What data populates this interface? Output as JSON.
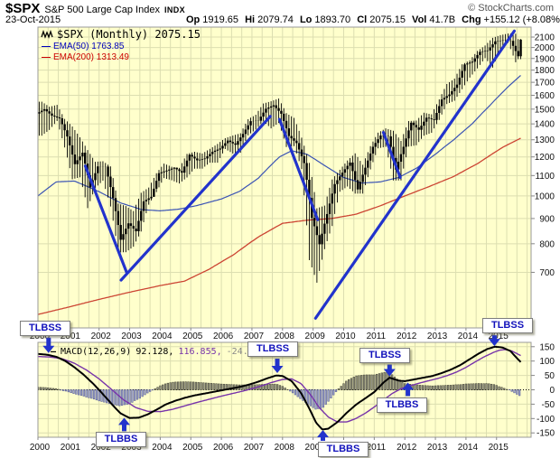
{
  "header": {
    "symbol": "$SPX",
    "title": "S&P 500 Large Cap Index",
    "exchange": "INDX",
    "copyright": "© StockCharts.com",
    "date": "23-Oct-2015",
    "quote": {
      "op_l": "Op",
      "op": "1919.65",
      "hi_l": "Hi",
      "hi": "2079.74",
      "lo_l": "Lo",
      "lo": "1893.70",
      "cl_l": "Cl",
      "cl": "2075.15",
      "vol_l": "Vol",
      "vol": "41.7B",
      "chg_l": "Chg",
      "chg": "+155.12 (+8.08%)",
      "dir": "▲"
    }
  },
  "legend": {
    "price": "$SPX (Monthly) 2075.15",
    "ema50": "EMA(50) 1763.85",
    "ema200": "EMA(200) 1313.49",
    "dash": "—",
    "macd_name": "MACD(12,26,9)",
    "macd_v1": "92.128,",
    "macd_v2": "116.855,",
    "macd_v3": "-24.727"
  },
  "colors": {
    "bg": "#ffffcc",
    "grid": "#dcdeb0",
    "frame": "#999999",
    "candle": "#000000",
    "ema50": "#3a53b4",
    "ema200": "#cc4433",
    "trend": "#2233cc",
    "macd": "#000000",
    "signal": "#7733aa",
    "hist_pos": "#8f8f80",
    "hist_pos_stroke": "#50503f",
    "hist_neg": "#a0a6cc",
    "hist_neg_stroke": "#5f6498",
    "anno_text": "#1111bb",
    "arrow": "#2233cc",
    "axis_text": "#111111"
  },
  "chart_data": [
    {
      "type": "candlestick",
      "title": "$SPX (Monthly)",
      "y_scale": "log",
      "x_range": [
        2000,
        2016.13
      ],
      "x_years": [
        2000,
        2001,
        2002,
        2003,
        2004,
        2005,
        2006,
        2007,
        2008,
        2009,
        2010,
        2011,
        2012,
        2013,
        2014,
        2015
      ],
      "ylim": [
        540,
        2200
      ],
      "yticks": [
        2100,
        2000,
        1900,
        1800,
        1700,
        1600,
        1500,
        1400,
        1300,
        1200,
        1100,
        1000,
        900,
        800,
        700
      ],
      "first_close": 1469,
      "quarters": {
        "t": [
          2000.25,
          2000.5,
          2000.75,
          2001,
          2001.25,
          2001.5,
          2001.75,
          2002,
          2002.25,
          2002.5,
          2002.75,
          2003,
          2003.25,
          2003.5,
          2003.75,
          2004,
          2004.25,
          2004.5,
          2004.75,
          2005,
          2005.25,
          2005.5,
          2005.75,
          2006,
          2006.25,
          2006.5,
          2006.75,
          2007,
          2007.25,
          2007.5,
          2007.75,
          2008,
          2008.25,
          2008.5,
          2008.75,
          2009,
          2009.25,
          2009.5,
          2009.75,
          2010,
          2010.25,
          2010.5,
          2010.75,
          2011,
          2011.25,
          2011.5,
          2011.75,
          2012,
          2012.25,
          2012.5,
          2012.75,
          2013,
          2013.25,
          2013.5,
          2013.75,
          2014,
          2014.25,
          2014.5,
          2014.75,
          2015,
          2015.25,
          2015.5,
          2015.75,
          2015.83
        ],
        "close": [
          1499,
          1455,
          1437,
          1320,
          1160,
          1224,
          1041,
          1148,
          1147,
          990,
          815,
          880,
          848,
          975,
          996,
          1112,
          1126,
          1141,
          1115,
          1212,
          1181,
          1191,
          1229,
          1248,
          1295,
          1270,
          1336,
          1418,
          1421,
          1503,
          1527,
          1468,
          1323,
          1280,
          1166,
          903,
          798,
          919,
          1057,
          1115,
          1169,
          1031,
          1141,
          1258,
          1326,
          1321,
          1131,
          1258,
          1408,
          1362,
          1441,
          1426,
          1569,
          1606,
          1682,
          1848,
          1872,
          1960,
          1972,
          2059,
          2068,
          2063,
          1920,
          2075
        ],
        "high": [
          1553,
          1517,
          1530,
          1433,
          1383,
          1315,
          1239,
          1173,
          1176,
          1148,
          965,
          954,
          932,
          1015,
          1040,
          1112,
          1163,
          1146,
          1140,
          1217,
          1229,
          1219,
          1246,
          1275,
          1310,
          1326,
          1340,
          1431,
          1461,
          1540,
          1556,
          1576,
          1472,
          1440,
          1313,
          1167,
          944,
          956,
          1080,
          1130,
          1180,
          1220,
          1157,
          1262,
          1344,
          1371,
          1356,
          1293,
          1419,
          1422,
          1475,
          1464,
          1570,
          1687,
          1730,
          1849,
          1884,
          1968,
          2019,
          2093,
          2119,
          2135,
          2133,
          2080
        ],
        "low": [
          1325,
          1361,
          1419,
          1254,
          1081,
          1091,
          945,
          1038,
          1074,
          952,
          768,
          769,
          789,
          847,
          960,
          1018,
          1087,
          1076,
          1060,
          1090,
          1136,
          1136,
          1168,
          1168,
          1245,
          1219,
          1224,
          1327,
          1364,
          1416,
          1371,
          1406,
          1257,
          1262,
          1134,
          741,
          667,
          780,
          869,
          1020,
          1045,
          1011,
          1011,
          1132,
          1249,
          1258,
          1075,
          1075,
          1259,
          1267,
          1325,
          1343,
          1426,
          1536,
          1560,
          1646,
          1738,
          1814,
          1904,
          1821,
          1981,
          2044,
          1867,
          1894
        ]
      },
      "overlays": {
        "ema50": [
          [
            2000,
            1000
          ],
          [
            2000.6,
            1068
          ],
          [
            2001.2,
            1072
          ],
          [
            2002,
            1020
          ],
          [
            2002.7,
            968
          ],
          [
            2003.4,
            938
          ],
          [
            2004,
            933
          ],
          [
            2004.6,
            940
          ],
          [
            2005.2,
            956
          ],
          [
            2006,
            986
          ],
          [
            2006.6,
            1022
          ],
          [
            2007.2,
            1085
          ],
          [
            2007.9,
            1200
          ],
          [
            2008.3,
            1235
          ],
          [
            2008.8,
            1215
          ],
          [
            2009.4,
            1150
          ],
          [
            2010,
            1090
          ],
          [
            2010.6,
            1062
          ],
          [
            2011.2,
            1068
          ],
          [
            2011.8,
            1090
          ],
          [
            2012.4,
            1140
          ],
          [
            2013,
            1215
          ],
          [
            2013.6,
            1300
          ],
          [
            2014.2,
            1400
          ],
          [
            2014.8,
            1530
          ],
          [
            2015.4,
            1670
          ],
          [
            2015.83,
            1764
          ]
        ],
        "ema200": [
          [
            2000,
            575
          ],
          [
            2001,
            595
          ],
          [
            2002,
            617
          ],
          [
            2003,
            638
          ],
          [
            2004,
            658
          ],
          [
            2004.8,
            672
          ],
          [
            2005.6,
            710
          ],
          [
            2006.4,
            760
          ],
          [
            2007.2,
            825
          ],
          [
            2008,
            880
          ],
          [
            2008.8,
            893
          ],
          [
            2009.6,
            900
          ],
          [
            2010.4,
            918
          ],
          [
            2011.2,
            955
          ],
          [
            2012,
            1000
          ],
          [
            2012.8,
            1045
          ],
          [
            2013.6,
            1095
          ],
          [
            2014.4,
            1165
          ],
          [
            2015.2,
            1255
          ],
          [
            2015.83,
            1313
          ]
        ],
        "trendlines": [
          [
            2001.55,
            1150,
            2002.9,
            700
          ],
          [
            2002.72,
            675,
            2007.6,
            1450
          ],
          [
            2007.9,
            1430,
            2009.15,
            895
          ],
          [
            2009.08,
            565,
            2015.58,
            2160
          ],
          [
            2011.3,
            1345,
            2011.85,
            1090
          ]
        ]
      }
    },
    {
      "type": "macd",
      "title": "MACD(12,26,9)",
      "ylim": [
        -165,
        165
      ],
      "yticks": [
        150,
        100,
        50,
        0,
        -50,
        -100,
        -150
      ],
      "macd_line": [
        [
          2000,
          125
        ],
        [
          2000.3,
          122
        ],
        [
          2000.6,
          115
        ],
        [
          2000.9,
          100
        ],
        [
          2001.2,
          78
        ],
        [
          2001.5,
          52
        ],
        [
          2001.8,
          22
        ],
        [
          2002.1,
          -12
        ],
        [
          2002.4,
          -48
        ],
        [
          2002.7,
          -82
        ],
        [
          2003,
          -98
        ],
        [
          2003.3,
          -97
        ],
        [
          2003.6,
          -85
        ],
        [
          2003.9,
          -68
        ],
        [
          2004.2,
          -50
        ],
        [
          2004.5,
          -38
        ],
        [
          2004.8,
          -28
        ],
        [
          2005.1,
          -20
        ],
        [
          2005.4,
          -14
        ],
        [
          2005.7,
          -8
        ],
        [
          2006,
          -2
        ],
        [
          2006.3,
          4
        ],
        [
          2006.6,
          10
        ],
        [
          2006.9,
          18
        ],
        [
          2007.2,
          28
        ],
        [
          2007.5,
          40
        ],
        [
          2007.8,
          50
        ],
        [
          2008,
          48
        ],
        [
          2008.3,
          30
        ],
        [
          2008.6,
          -10
        ],
        [
          2008.9,
          -70
        ],
        [
          2009.1,
          -115
        ],
        [
          2009.3,
          -138
        ],
        [
          2009.5,
          -135
        ],
        [
          2009.8,
          -112
        ],
        [
          2010.1,
          -80
        ],
        [
          2010.4,
          -52
        ],
        [
          2010.7,
          -30
        ],
        [
          2011,
          -8
        ],
        [
          2011.3,
          25
        ],
        [
          2011.5,
          42
        ],
        [
          2011.8,
          32
        ],
        [
          2012,
          30
        ],
        [
          2012.3,
          36
        ],
        [
          2012.6,
          42
        ],
        [
          2012.9,
          48
        ],
        [
          2013.2,
          58
        ],
        [
          2013.5,
          70
        ],
        [
          2013.8,
          85
        ],
        [
          2014.1,
          105
        ],
        [
          2014.4,
          125
        ],
        [
          2014.7,
          142
        ],
        [
          2014.95,
          150
        ],
        [
          2015.2,
          147
        ],
        [
          2015.45,
          135
        ],
        [
          2015.6,
          118
        ],
        [
          2015.83,
          92
        ]
      ],
      "signal_line": [
        [
          2000,
          116
        ],
        [
          2000.4,
          114
        ],
        [
          2000.8,
          108
        ],
        [
          2001.2,
          92
        ],
        [
          2001.6,
          68
        ],
        [
          2002,
          38
        ],
        [
          2002.4,
          2
        ],
        [
          2002.8,
          -35
        ],
        [
          2003.2,
          -62
        ],
        [
          2003.6,
          -75
        ],
        [
          2004,
          -76
        ],
        [
          2004.4,
          -68
        ],
        [
          2004.8,
          -56
        ],
        [
          2005.2,
          -44
        ],
        [
          2005.6,
          -33
        ],
        [
          2006,
          -22
        ],
        [
          2006.4,
          -12
        ],
        [
          2006.8,
          -2
        ],
        [
          2007.2,
          10
        ],
        [
          2007.6,
          24
        ],
        [
          2008,
          36
        ],
        [
          2008.3,
          38
        ],
        [
          2008.6,
          22
        ],
        [
          2008.9,
          -15
        ],
        [
          2009.2,
          -62
        ],
        [
          2009.5,
          -95
        ],
        [
          2009.8,
          -112
        ],
        [
          2010.1,
          -112
        ],
        [
          2010.4,
          -100
        ],
        [
          2010.7,
          -82
        ],
        [
          2011,
          -60
        ],
        [
          2011.3,
          -35
        ],
        [
          2011.6,
          -12
        ],
        [
          2011.9,
          5
        ],
        [
          2012.2,
          15
        ],
        [
          2012.5,
          24
        ],
        [
          2012.8,
          32
        ],
        [
          2013.1,
          40
        ],
        [
          2013.4,
          50
        ],
        [
          2013.7,
          62
        ],
        [
          2014,
          78
        ],
        [
          2014.3,
          97
        ],
        [
          2014.6,
          115
        ],
        [
          2014.9,
          130
        ],
        [
          2015.1,
          138
        ],
        [
          2015.3,
          140
        ],
        [
          2015.5,
          135
        ],
        [
          2015.83,
          117
        ]
      ],
      "histogram": "macd_minus_signal"
    }
  ],
  "annotations": [
    {
      "label": "TLBSS",
      "dir": "down",
      "year": 2000.35,
      "tip_value": 128,
      "len": 17,
      "dx": -5
    },
    {
      "label": "TLBBS",
      "dir": "up",
      "year": 2002.82,
      "tip_value": -97,
      "len": 15,
      "dx": -4
    },
    {
      "label": "TLBSS",
      "dir": "down",
      "year": 2007.83,
      "tip_value": 58,
      "len": 16,
      "dx": -6
    },
    {
      "label": "TLBBS",
      "dir": "up",
      "year": 2009.32,
      "tip_value": -140,
      "len": 12,
      "dx": 22
    },
    {
      "label": "TLBSS",
      "dir": "down",
      "year": 2011.5,
      "tip_value": 47,
      "len": 13,
      "dx": -6
    },
    {
      "label": "TLBBS",
      "dir": "up",
      "year": 2012.1,
      "tip_value": 25,
      "len": 15,
      "dx": -8
    },
    {
      "label": "TLBSS",
      "dir": "down",
      "year": 2014.93,
      "tip_value": 152,
      "len": 12,
      "dx": 14
    }
  ]
}
